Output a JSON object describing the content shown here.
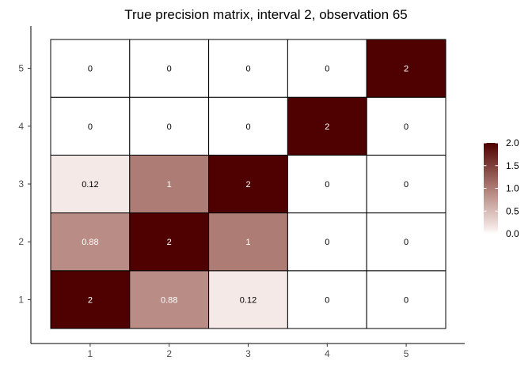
{
  "chart_data": {
    "type": "heatmap",
    "title": "True precision matrix, interval 2, observation 65",
    "xlabel": "",
    "ylabel": "",
    "x_categories": [
      "1",
      "2",
      "3",
      "4",
      "5"
    ],
    "y_categories": [
      "1",
      "2",
      "3",
      "4",
      "5"
    ],
    "cells": [
      {
        "x": "1",
        "y": "1",
        "value": 2,
        "label": "2"
      },
      {
        "x": "2",
        "y": "1",
        "value": 0.88,
        "label": "0.88"
      },
      {
        "x": "3",
        "y": "1",
        "value": 0.12,
        "label": "0.12"
      },
      {
        "x": "4",
        "y": "1",
        "value": 0,
        "label": "0"
      },
      {
        "x": "5",
        "y": "1",
        "value": 0,
        "label": "0"
      },
      {
        "x": "1",
        "y": "2",
        "value": 0.88,
        "label": "0.88"
      },
      {
        "x": "2",
        "y": "2",
        "value": 2,
        "label": "2"
      },
      {
        "x": "3",
        "y": "2",
        "value": 1,
        "label": "1"
      },
      {
        "x": "4",
        "y": "2",
        "value": 0,
        "label": "0"
      },
      {
        "x": "5",
        "y": "2",
        "value": 0,
        "label": "0"
      },
      {
        "x": "1",
        "y": "3",
        "value": 0.12,
        "label": "0.12"
      },
      {
        "x": "2",
        "y": "3",
        "value": 1,
        "label": "1"
      },
      {
        "x": "3",
        "y": "3",
        "value": 2,
        "label": "2"
      },
      {
        "x": "4",
        "y": "3",
        "value": 0,
        "label": "0"
      },
      {
        "x": "5",
        "y": "3",
        "value": 0,
        "label": "0"
      },
      {
        "x": "1",
        "y": "4",
        "value": 0,
        "label": "0"
      },
      {
        "x": "2",
        "y": "4",
        "value": 0,
        "label": "0"
      },
      {
        "x": "3",
        "y": "4",
        "value": 0,
        "label": "0"
      },
      {
        "x": "4",
        "y": "4",
        "value": 2,
        "label": "2"
      },
      {
        "x": "5",
        "y": "4",
        "value": 0,
        "label": "0"
      },
      {
        "x": "1",
        "y": "5",
        "value": 0,
        "label": "0"
      },
      {
        "x": "2",
        "y": "5",
        "value": 0,
        "label": "0"
      },
      {
        "x": "3",
        "y": "5",
        "value": 0,
        "label": "0"
      },
      {
        "x": "4",
        "y": "5",
        "value": 0,
        "label": "0"
      },
      {
        "x": "5",
        "y": "5",
        "value": 2,
        "label": "2"
      }
    ],
    "color_scale": {
      "range": [
        0,
        2
      ],
      "stops": [
        [
          0,
          "#ffffff"
        ],
        [
          0.12,
          "#f4e9e7"
        ],
        [
          0.88,
          "#b98c85"
        ],
        [
          1,
          "#ad7d75"
        ],
        [
          2,
          "#4f0000"
        ]
      ],
      "legend_ticks": [
        "0.0",
        "0.5",
        "1.0",
        "1.5",
        "2.0"
      ],
      "legend_tick_values": [
        0,
        0.5,
        1,
        1.5,
        2
      ],
      "legend_placement": "right"
    },
    "grid": false
  }
}
